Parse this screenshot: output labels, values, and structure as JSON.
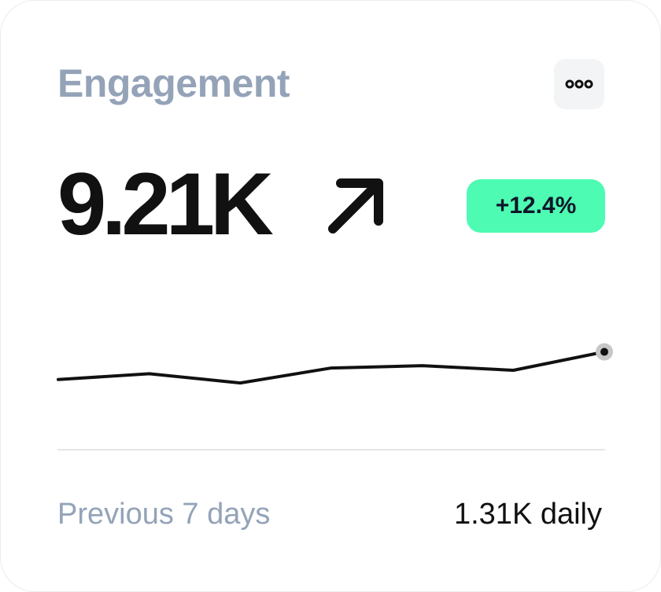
{
  "card": {
    "title": "Engagement",
    "more_icon": "more-horizontal-icon",
    "metric_value": "9.21K",
    "trend_icon": "arrow-up-right-icon",
    "change_badge": "+12.4%",
    "footer_period": "Previous 7 days",
    "footer_daily": "1.31K daily"
  },
  "colors": {
    "title": "#94a3b8",
    "badge_background": "#4dfbb2",
    "metric": "#111111",
    "divider": "#e7e7ea"
  },
  "sparkline": {
    "type": "line",
    "values": [
      2.2,
      2.7,
      1.9,
      3.2,
      3.4,
      3.0,
      4.6
    ],
    "ylim": [
      0,
      6
    ]
  }
}
